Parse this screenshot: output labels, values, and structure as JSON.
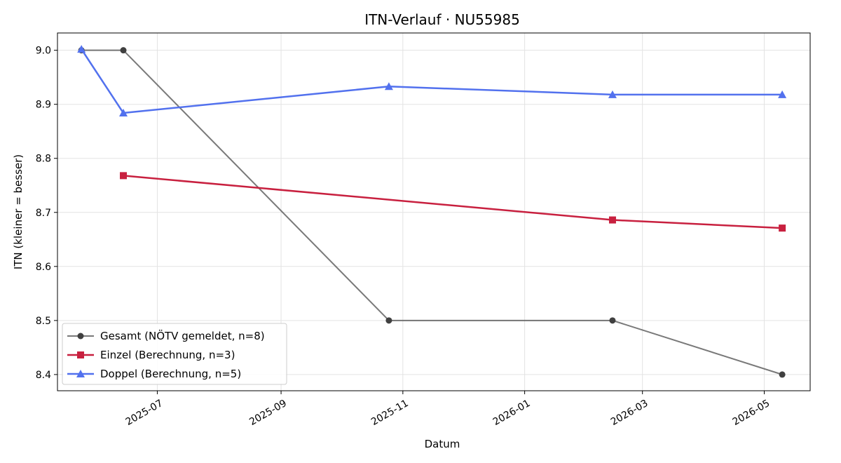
{
  "chart_data": {
    "type": "line",
    "title": "ITN-Verlauf · NU55985",
    "xlabel": "Datum",
    "ylabel": "ITN  (kleiner = besser)",
    "x_type": "date",
    "xlim": [
      "2025-05-12",
      "2026-05-24"
    ],
    "ylim": [
      8.37,
      9.032
    ],
    "x_ticks": [
      {
        "date": "2025-07-01",
        "label": "2025-07"
      },
      {
        "date": "2025-09-01",
        "label": "2025-09"
      },
      {
        "date": "2025-11-01",
        "label": "2025-11"
      },
      {
        "date": "2026-01-01",
        "label": "2026-01"
      },
      {
        "date": "2026-03-01",
        "label": "2026-03"
      },
      {
        "date": "2026-05-01",
        "label": "2026-05"
      }
    ],
    "y_ticks": [
      {
        "value": 8.4,
        "label": "8.4"
      },
      {
        "value": 8.5,
        "label": "8.5"
      },
      {
        "value": 8.6,
        "label": "8.6"
      },
      {
        "value": 8.7,
        "label": "8.7"
      },
      {
        "value": 8.8,
        "label": "8.8"
      },
      {
        "value": 8.9,
        "label": "8.9"
      },
      {
        "value": 9.0,
        "label": "9.0"
      }
    ],
    "grid": true,
    "legend_position": "lower-left",
    "series": [
      {
        "name": "Gesamt (NÖTV gemeldet, n=8)",
        "color": "#404040",
        "marker": "circle",
        "points": [
          {
            "x": "2025-05-24",
            "y": 9.0
          },
          {
            "x": "2025-06-14",
            "y": 9.0
          },
          {
            "x": "2025-10-25",
            "y": 8.5
          },
          {
            "x": "2026-02-14",
            "y": 8.5
          },
          {
            "x": "2026-05-10",
            "y": 8.4
          }
        ]
      },
      {
        "name": "Einzel (Berechnung, n=3)",
        "color": "#c8203f",
        "marker": "square",
        "points": [
          {
            "x": "2025-06-14",
            "y": 8.768
          },
          {
            "x": "2026-02-14",
            "y": 8.686
          },
          {
            "x": "2026-05-10",
            "y": 8.671
          }
        ]
      },
      {
        "name": "Doppel (Berechnung, n=5)",
        "color": "#5271ee",
        "marker": "triangle",
        "points": [
          {
            "x": "2025-05-24",
            "y": 9.002
          },
          {
            "x": "2025-06-14",
            "y": 8.884
          },
          {
            "x": "2025-10-25",
            "y": 8.933
          },
          {
            "x": "2026-02-14",
            "y": 8.918
          },
          {
            "x": "2026-05-10",
            "y": 8.918
          }
        ]
      }
    ]
  }
}
